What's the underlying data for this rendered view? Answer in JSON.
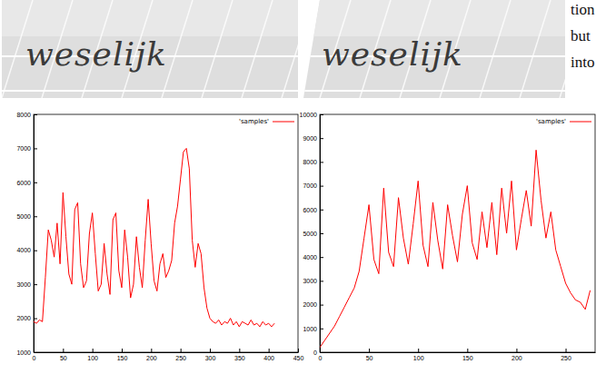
{
  "images": [
    {
      "word": "weselijk"
    },
    {
      "word": "weselijk"
    }
  ],
  "margin_text": [
    "tion",
    "but",
    "into"
  ],
  "chart_data": [
    {
      "type": "line",
      "legend": "top-right",
      "grid": false,
      "xlim": [
        0,
        450
      ],
      "xticks": [
        0,
        50,
        100,
        150,
        200,
        250,
        300,
        350,
        400,
        450
      ],
      "ylim": [
        1000,
        8000
      ],
      "yticks": [
        1000,
        2000,
        3000,
        4000,
        5000,
        6000,
        7000,
        8000
      ],
      "x": [
        0,
        5,
        10,
        15,
        20,
        25,
        30,
        35,
        40,
        45,
        50,
        55,
        60,
        65,
        70,
        75,
        80,
        85,
        90,
        95,
        100,
        105,
        110,
        115,
        120,
        125,
        130,
        135,
        140,
        145,
        150,
        155,
        160,
        165,
        170,
        175,
        180,
        185,
        190,
        195,
        200,
        205,
        210,
        215,
        220,
        225,
        230,
        235,
        240,
        245,
        250,
        255,
        260,
        265,
        270,
        275,
        280,
        285,
        290,
        295,
        300,
        305,
        310,
        315,
        320,
        325,
        330,
        335,
        340,
        345,
        350,
        355,
        360,
        365,
        370,
        375,
        380,
        385,
        390,
        395,
        400,
        405,
        410
      ],
      "series": [
        {
          "name": "'samples'",
          "color": "#ff0000",
          "values": [
            1900,
            1850,
            1950,
            1900,
            3200,
            4600,
            4300,
            3800,
            4800,
            3600,
            5700,
            4400,
            3300,
            3000,
            5200,
            5400,
            3600,
            2900,
            3100,
            4500,
            5100,
            3900,
            2800,
            3000,
            4200,
            3300,
            2700,
            4900,
            5100,
            3400,
            2900,
            4600,
            3800,
            2600,
            3000,
            4400,
            3500,
            2900,
            4300,
            5500,
            4200,
            3100,
            2800,
            3600,
            3900,
            3200,
            3400,
            3700,
            4800,
            5300,
            6100,
            6900,
            7000,
            6400,
            4300,
            3500,
            4200,
            3900,
            2900,
            2300,
            2000,
            1900,
            1850,
            1950,
            1800,
            1900,
            1850,
            2000,
            1800,
            1900,
            1750,
            1900,
            1850,
            1800,
            1950,
            1800,
            1850,
            1750,
            1900,
            1800,
            1850,
            1750,
            1850
          ]
        }
      ]
    },
    {
      "type": "line",
      "legend": "top-right",
      "grid": false,
      "xlim": [
        0,
        280
      ],
      "xticks": [
        0,
        50,
        100,
        150,
        200,
        250
      ],
      "ylim": [
        0,
        10000
      ],
      "yticks": [
        0,
        1000,
        2000,
        3000,
        4000,
        5000,
        6000,
        7000,
        8000,
        9000,
        10000
      ],
      "x": [
        0,
        5,
        10,
        15,
        20,
        25,
        30,
        35,
        40,
        45,
        50,
        55,
        60,
        65,
        70,
        75,
        80,
        85,
        90,
        95,
        100,
        105,
        110,
        115,
        120,
        125,
        130,
        135,
        140,
        145,
        150,
        155,
        160,
        165,
        170,
        175,
        180,
        185,
        190,
        195,
        200,
        205,
        210,
        215,
        220,
        225,
        230,
        235,
        240,
        245,
        250,
        255,
        260,
        265,
        270,
        275
      ],
      "series": [
        {
          "name": "'samples'",
          "color": "#ff0000",
          "values": [
            200,
            500,
            800,
            1100,
            1500,
            1900,
            2300,
            2700,
            3400,
            4800,
            6200,
            3900,
            3300,
            6900,
            4200,
            3600,
            6500,
            4800,
            3700,
            5400,
            7200,
            4500,
            3600,
            6300,
            4700,
            3500,
            6200,
            4900,
            3800,
            5800,
            7000,
            4600,
            3900,
            5900,
            4400,
            6300,
            4100,
            6900,
            5000,
            7200,
            4300,
            5600,
            6800,
            5300,
            8500,
            6400,
            4800,
            5900,
            4300,
            3600,
            2900,
            2500,
            2200,
            2100,
            1800,
            2600
          ]
        }
      ]
    }
  ]
}
